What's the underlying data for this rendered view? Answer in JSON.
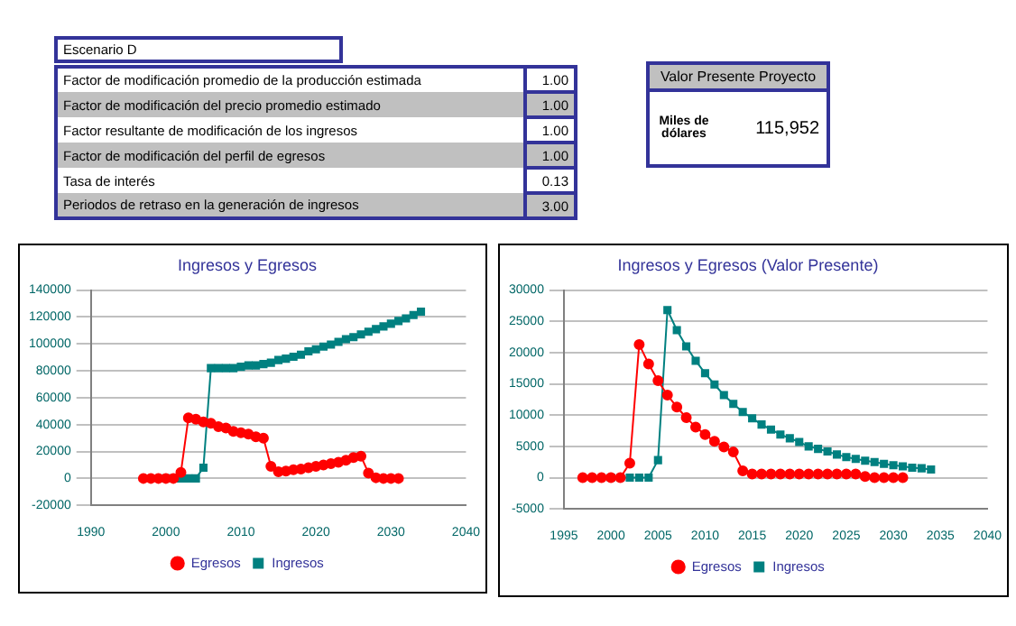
{
  "chart_data": [
    {
      "type": "other",
      "title": "Escenario D",
      "categories": [
        "Factor de modificación promedio de la producción estimada",
        "Factor de modificación del precio promedio estimado",
        "Factor resultante de modificación de los ingresos",
        "Factor de modificación del perfil de egresos",
        "Tasa de interés",
        "Periodos de retraso en la generación de ingresos"
      ],
      "value_labels": [
        "1.00",
        "1.00",
        "1.00",
        "1.00",
        "0.13",
        "3.00"
      ]
    },
    {
      "type": "other",
      "title": "Valor Presente Proyecto",
      "annotations": [
        "Miles de dólares",
        "115,952"
      ]
    },
    {
      "type": "line",
      "title": "Ingresos y Egresos",
      "xlim": [
        1990,
        2040
      ],
      "xticks": [
        1990,
        2000,
        2010,
        2020,
        2030,
        2040
      ],
      "ylim": [
        -20000,
        140000
      ],
      "yticks": [
        -20000,
        0,
        20000,
        40000,
        60000,
        80000,
        100000,
        120000,
        140000
      ],
      "grid": "y",
      "legend": "bottom",
      "series": [
        {
          "name": "Egresos",
          "color": "#ff0000",
          "marker": "circle",
          "x": [
            1997,
            1998,
            1999,
            2000,
            2001,
            2002,
            2003,
            2004,
            2005,
            2006,
            2007,
            2008,
            2009,
            2010,
            2011,
            2012,
            2013,
            2014,
            2015,
            2016,
            2017,
            2018,
            2019,
            2020,
            2021,
            2022,
            2023,
            2024,
            2025,
            2026,
            2027,
            2028,
            2029,
            2030,
            2031
          ],
          "values": [
            0,
            0,
            0,
            0,
            0,
            4500,
            45000,
            44000,
            42000,
            41000,
            38500,
            37500,
            35000,
            34000,
            33000,
            31000,
            30000,
            9000,
            5000,
            5500,
            6500,
            7000,
            8000,
            9000,
            10000,
            11000,
            12000,
            13500,
            15500,
            16500,
            4000,
            500,
            0,
            0,
            0
          ]
        },
        {
          "name": "Ingresos",
          "color": "#008080",
          "marker": "square",
          "x": [
            2000,
            2001,
            2002,
            2003,
            2004,
            2005,
            2006,
            2007,
            2008,
            2009,
            2010,
            2011,
            2012,
            2013,
            2014,
            2015,
            2016,
            2017,
            2018,
            2019,
            2020,
            2021,
            2022,
            2023,
            2024,
            2025,
            2026,
            2027,
            2028,
            2029,
            2030,
            2031,
            2032,
            2033,
            2034
          ],
          "values": [
            0,
            0,
            0,
            0,
            0,
            8000,
            82000,
            82000,
            82000,
            82000,
            83000,
            84000,
            84000,
            85000,
            86000,
            88000,
            89000,
            90500,
            92000,
            94500,
            96000,
            98000,
            99500,
            101500,
            103500,
            105000,
            107000,
            109000,
            111000,
            113000,
            115000,
            117000,
            119000,
            121500,
            124000
          ]
        }
      ]
    },
    {
      "type": "line",
      "title": "Ingresos y Egresos (Valor Presente)",
      "xlim": [
        1995,
        2040
      ],
      "xticks": [
        1995,
        2000,
        2005,
        2010,
        2015,
        2020,
        2025,
        2030,
        2035,
        2040
      ],
      "ylim": [
        -5000,
        30000
      ],
      "yticks": [
        -5000,
        0,
        5000,
        10000,
        15000,
        20000,
        25000,
        30000
      ],
      "grid": "y",
      "legend": "bottom",
      "series": [
        {
          "name": "Egresos",
          "color": "#ff0000",
          "marker": "circle",
          "x": [
            1997,
            1998,
            1999,
            2000,
            2001,
            2002,
            2003,
            2004,
            2005,
            2006,
            2007,
            2008,
            2009,
            2010,
            2011,
            2012,
            2013,
            2014,
            2015,
            2016,
            2017,
            2018,
            2019,
            2020,
            2021,
            2022,
            2023,
            2024,
            2025,
            2026,
            2027,
            2028,
            2029,
            2030,
            2031
          ],
          "values": [
            0,
            0,
            0,
            0,
            0,
            2300,
            21300,
            18200,
            15500,
            13200,
            11300,
            9600,
            8100,
            6900,
            5800,
            4900,
            4100,
            1100,
            600,
            600,
            600,
            600,
            600,
            600,
            600,
            600,
            600,
            600,
            600,
            600,
            200,
            0,
            0,
            0,
            0
          ]
        },
        {
          "name": "Ingresos",
          "color": "#008080",
          "marker": "square",
          "x": [
            2000,
            2001,
            2002,
            2003,
            2004,
            2005,
            2006,
            2007,
            2008,
            2009,
            2010,
            2011,
            2012,
            2013,
            2014,
            2015,
            2016,
            2017,
            2018,
            2019,
            2020,
            2021,
            2022,
            2023,
            2024,
            2025,
            2026,
            2027,
            2028,
            2029,
            2030,
            2031,
            2032,
            2033,
            2034
          ],
          "values": [
            0,
            0,
            0,
            0,
            0,
            2800,
            26800,
            23600,
            21000,
            18700,
            16700,
            14900,
            13200,
            11800,
            10500,
            9500,
            8500,
            7700,
            6900,
            6300,
            5700,
            5000,
            4600,
            4200,
            3700,
            3300,
            3000,
            2700,
            2500,
            2200,
            2000,
            1800,
            1600,
            1500,
            1300
          ]
        }
      ]
    }
  ]
}
